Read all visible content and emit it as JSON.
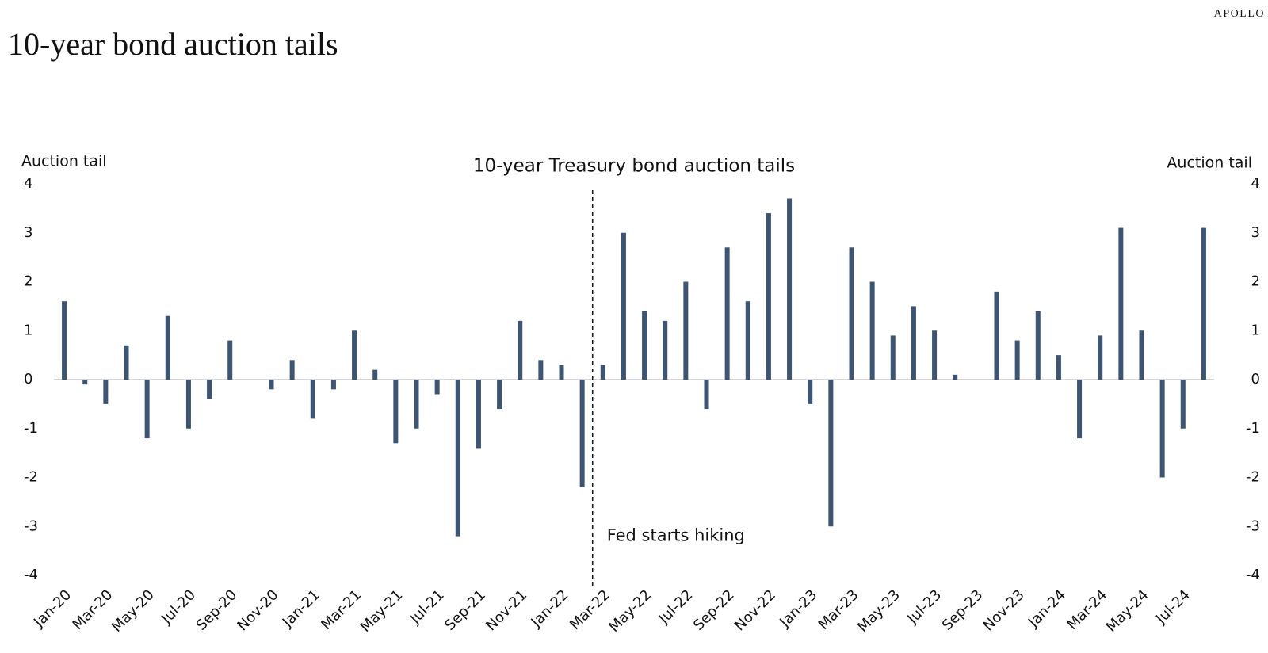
{
  "brand": "APOLLO",
  "title": "10-year bond auction tails",
  "chart_data": {
    "type": "bar",
    "title": "10-year Treasury bond auction tails",
    "y_label": "Auction tail",
    "y2_label": "Auction tail",
    "categories": [
      "Jan-20",
      null,
      "Mar-20",
      null,
      "May-20",
      null,
      "Jul-20",
      null,
      "Sep-20",
      null,
      "Nov-20",
      null,
      "Jan-21",
      null,
      "Mar-21",
      null,
      "May-21",
      null,
      "Jul-21",
      null,
      "Sep-21",
      null,
      "Nov-21",
      null,
      "Jan-22",
      null,
      "Mar-22",
      null,
      "May-22",
      null,
      "Jul-22",
      null,
      "Sep-22",
      null,
      "Nov-22",
      null,
      "Jan-23",
      null,
      "Mar-23",
      null,
      "May-23",
      null,
      "Jul-23",
      null,
      "Sep-23",
      null,
      "Nov-23",
      null,
      "Jan-24",
      null,
      "Mar-24",
      null,
      "May-24",
      null,
      "Jul-24",
      null
    ],
    "values": [
      1.6,
      -0.1,
      -0.5,
      0.7,
      -1.2,
      1.3,
      -1.0,
      -0.4,
      0.8,
      0,
      -0.2,
      0.4,
      -0.8,
      -0.2,
      1.0,
      0.2,
      -1.3,
      -1.0,
      -0.3,
      -3.2,
      -1.4,
      -0.6,
      1.2,
      0.4,
      0.3,
      -2.2,
      0.3,
      3.0,
      1.4,
      1.2,
      2.0,
      -0.6,
      2.7,
      1.6,
      3.4,
      3.7,
      -0.5,
      -3.0,
      2.7,
      2.0,
      0.9,
      1.5,
      1.0,
      0.1,
      0,
      1.8,
      0.8,
      1.4,
      0.5,
      -1.2,
      0.9,
      3.1,
      1.0,
      -2.0,
      -1.0,
      3.1
    ],
    "color": "#3d5572",
    "ylim": [
      -4,
      4
    ],
    "yticks": [
      -4,
      -3,
      -2,
      -1,
      0,
      1,
      2,
      3,
      4
    ],
    "y2lim": [
      -4,
      4
    ],
    "y2ticks": [
      -4,
      -3,
      -2,
      -1,
      0,
      1,
      2,
      3,
      4
    ],
    "grid": false,
    "annotation": {
      "text": "Fed starts hiking",
      "x": "Mar-22"
    }
  }
}
